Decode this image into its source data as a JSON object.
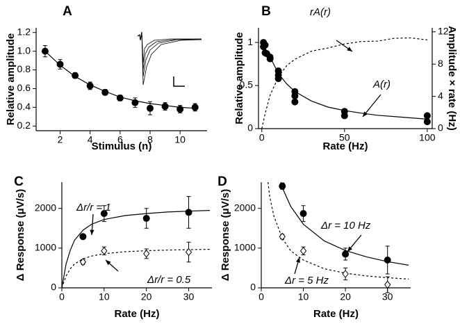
{
  "chart_data": [
    {
      "type": "scatter",
      "panel_label": "A",
      "xlabel": "Stimulus (n)",
      "ylabel": "Relative amplitude",
      "xlim": [
        0.4,
        11.8
      ],
      "ylim": [
        0.15,
        1.25
      ],
      "xticks": [
        2,
        4,
        6,
        8,
        10
      ],
      "yticks": [
        0.2,
        0.4,
        0.6,
        0.8,
        {
          "value": 1,
          "label": "1.0"
        },
        1.2
      ],
      "series": [
        {
          "style": "line",
          "line": "solid",
          "color": "#000",
          "x": [
            1,
            2,
            3,
            4,
            5,
            6,
            7,
            8,
            9,
            10,
            11
          ],
          "values": [
            1,
            0.85,
            0.73,
            0.64,
            0.57,
            0.51,
            0.47,
            0.44,
            0.42,
            0.4,
            0.39
          ]
        },
        {
          "style": "points",
          "marker": "circle",
          "fill": "#000",
          "color": "#000",
          "x": [
            1,
            2,
            3,
            4,
            5,
            6,
            7,
            8,
            9,
            10,
            11
          ],
          "values": [
            1,
            0.86,
            0.74,
            0.63,
            0.56,
            0.5,
            0.45,
            0.39,
            0.41,
            0.38,
            0.4
          ],
          "errors": [
            0.06,
            0.05,
            0.03,
            0.04,
            0.03,
            0.03,
            0.05,
            0.07,
            0.04,
            0.04,
            0.04
          ]
        }
      ]
    },
    {
      "type": "scatter",
      "panel_label": "B",
      "xlabel": "Rate (Hz)",
      "ylabel": "Relative amplitude",
      "y2label": "Amplitude × rate (Hz)",
      "xlim": [
        -2,
        103
      ],
      "ylim": [
        0,
        1.17
      ],
      "y2lim": [
        0,
        12.5
      ],
      "xticks": [
        0,
        50,
        100
      ],
      "yticks": [
        0,
        0.5,
        1
      ],
      "y2ticks": [
        0,
        4,
        8,
        12
      ],
      "annotations": [
        "rA(r)",
        "A(r)"
      ],
      "series": [
        {
          "style": "line",
          "line": "solid",
          "color": "#000",
          "x": [
            0,
            2,
            5,
            10,
            15,
            20,
            30,
            40,
            50,
            60,
            70,
            80,
            90,
            100
          ],
          "values": [
            1,
            0.93,
            0.83,
            0.64,
            0.52,
            0.43,
            0.32,
            0.25,
            0.21,
            0.18,
            0.155,
            0.14,
            0.125,
            0.11
          ]
        },
        {
          "style": "line",
          "line": "dashed",
          "axis": "y2",
          "color": "#000",
          "x": [
            0,
            2,
            5,
            10,
            15,
            20,
            30,
            40,
            50,
            60,
            70,
            80,
            90,
            100
          ],
          "values": [
            0,
            1.86,
            4.15,
            6.4,
            7.8,
            8.6,
            9.6,
            10,
            10.5,
            10.8,
            10.85,
            11.2,
            11.25,
            11
          ]
        },
        {
          "style": "points",
          "marker": "circle",
          "fill": "#000",
          "color": "#000",
          "x": [
            1,
            1,
            2,
            2,
            3,
            5,
            5,
            10,
            10,
            10,
            20,
            20,
            20,
            50,
            50,
            100,
            100
          ],
          "values": [
            1,
            0.95,
            0.97,
            0.88,
            0.87,
            0.83,
            0.81,
            0.62,
            0.58,
            0.67,
            0.43,
            0.38,
            0.31,
            0.2,
            0.15,
            0.15,
            0.08
          ]
        }
      ]
    },
    {
      "type": "scatter",
      "panel_label": "C",
      "xlabel": "Rate (Hz)",
      "ylabel": "Δ Response (μV/s)",
      "xlim": [
        0,
        35.5
      ],
      "ylim": [
        0,
        2660
      ],
      "xticks": [
        0,
        10,
        20,
        30
      ],
      "yticks": [
        0,
        1000,
        2000
      ],
      "annotations": [
        "Δr/r = 1",
        "Δr/r = 0.5"
      ],
      "series": [
        {
          "style": "line",
          "line": "solid",
          "color": "#000",
          "x": [
            0,
            1,
            2,
            3,
            5,
            7,
            10,
            15,
            20,
            25,
            30,
            35
          ],
          "values": [
            0,
            600,
            950,
            1200,
            1450,
            1600,
            1720,
            1820,
            1870,
            1910,
            1930,
            1950
          ]
        },
        {
          "style": "line",
          "line": "dashed",
          "color": "#000",
          "x": [
            0,
            1,
            2,
            3,
            5,
            7,
            10,
            15,
            20,
            25,
            30,
            35
          ],
          "values": [
            0,
            300,
            480,
            600,
            730,
            800,
            860,
            910,
            935,
            950,
            960,
            970
          ]
        },
        {
          "style": "points",
          "marker": "circle",
          "fill": "#000",
          "color": "#000",
          "x": [
            5,
            10,
            20,
            30
          ],
          "values": [
            1290,
            1870,
            1750,
            1900
          ],
          "errors": [
            50,
            200,
            250,
            400
          ]
        },
        {
          "style": "points",
          "marker": "diamond",
          "fill": "#fff",
          "color": "#000",
          "x": [
            5,
            10,
            20,
            30
          ],
          "values": [
            650,
            930,
            860,
            900
          ],
          "errors": [
            60,
            100,
            120,
            250
          ]
        }
      ]
    },
    {
      "type": "scatter",
      "panel_label": "D",
      "xlabel": "Rate (Hz)",
      "ylabel": "Δ Response (μV/s)",
      "xlim": [
        0,
        35.5
      ],
      "ylim": [
        0,
        2660
      ],
      "xticks": [
        0,
        10,
        20,
        30
      ],
      "yticks": [
        0,
        1000,
        2000
      ],
      "annotations": [
        "Δr = 10 Hz",
        "Δr = 5 Hz"
      ],
      "series": [
        {
          "style": "line",
          "line": "solid",
          "color": "#000",
          "x": [
            4.7,
            5,
            7,
            10,
            15,
            20,
            25,
            30,
            35
          ],
          "values": [
            2660,
            2520,
            2050,
            1600,
            1180,
            940,
            780,
            660,
            570
          ]
        },
        {
          "style": "line",
          "line": "dashed",
          "color": "#000",
          "x": [
            1.6,
            2,
            3,
            5,
            7,
            10,
            15,
            20,
            25,
            30,
            35
          ],
          "values": [
            2660,
            2300,
            1800,
            1250,
            930,
            700,
            480,
            370,
            300,
            255,
            220
          ]
        },
        {
          "style": "points",
          "marker": "circle",
          "fill": "#000",
          "color": "#000",
          "x": [
            5,
            10,
            20,
            30
          ],
          "values": [
            2560,
            1870,
            850,
            700
          ],
          "errors": [
            80,
            200,
            150,
            350
          ]
        },
        {
          "style": "points",
          "marker": "diamond",
          "fill": "#fff",
          "color": "#000",
          "x": [
            5,
            10,
            20,
            30
          ],
          "values": [
            1290,
            930,
            350,
            80
          ],
          "errors": [
            60,
            100,
            150,
            200
          ]
        }
      ]
    }
  ]
}
